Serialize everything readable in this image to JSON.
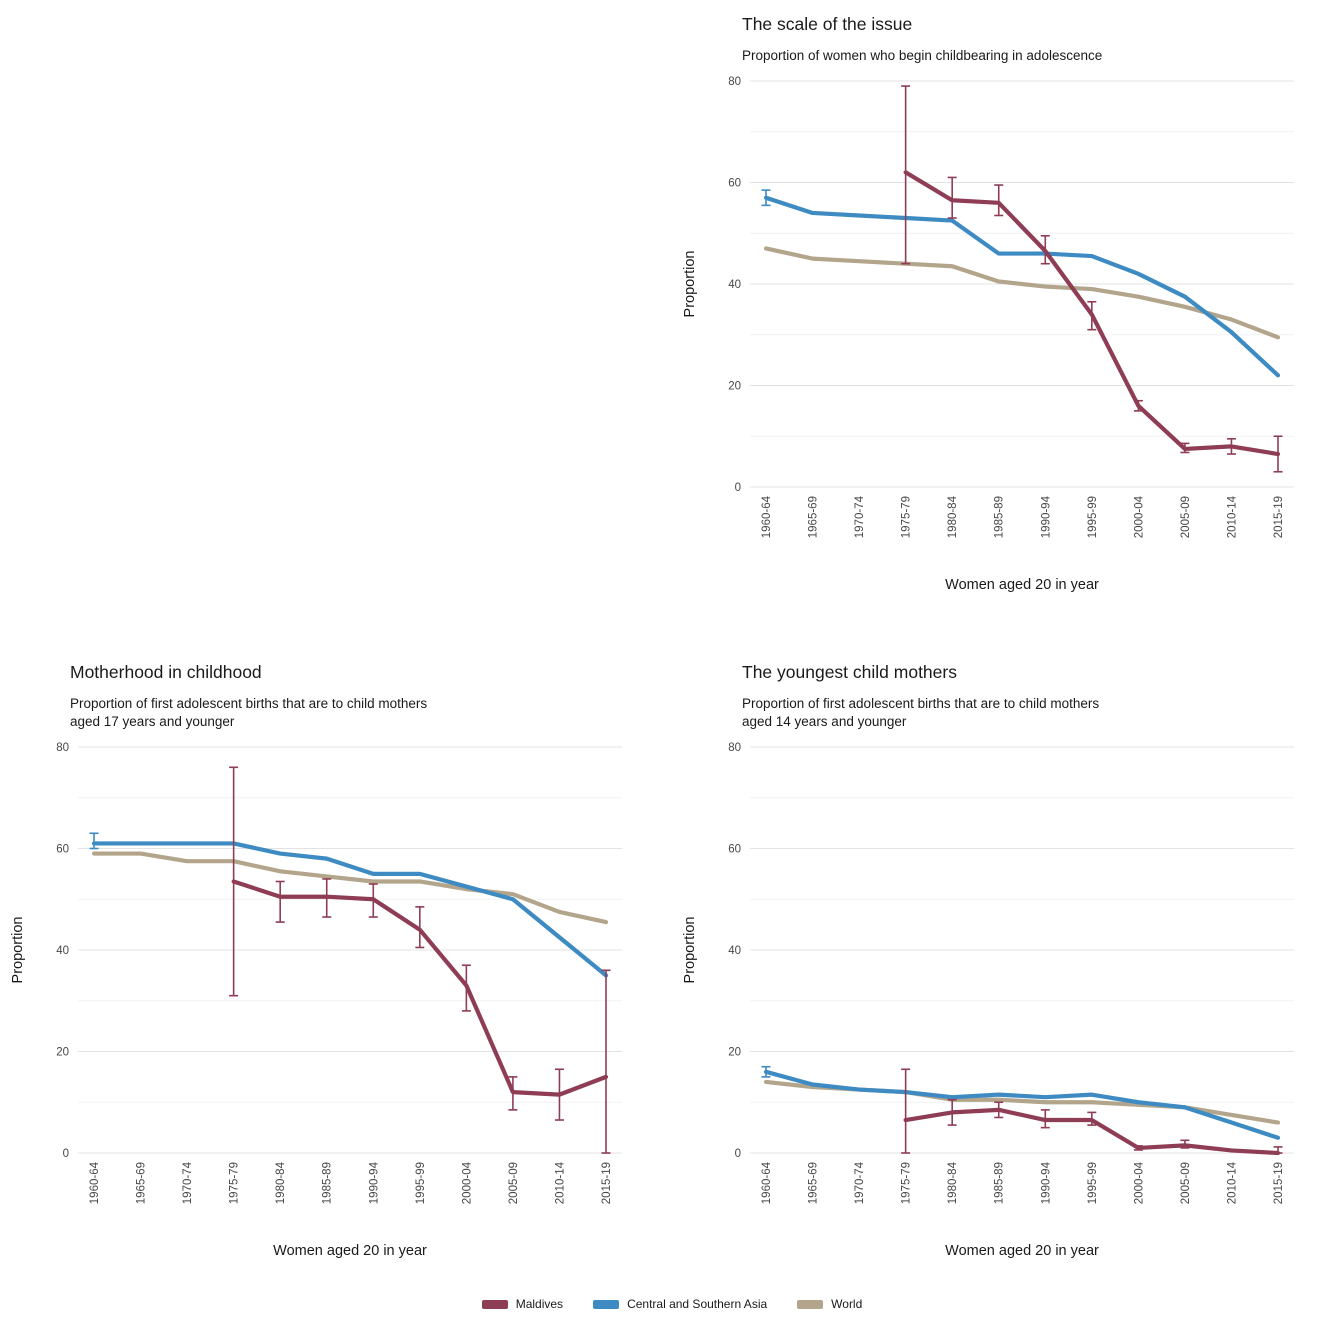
{
  "palette": {
    "Maldives": "#8e3d55",
    "Central and Southern Asia": "#3d8bc2",
    "World": "#b2a58b"
  },
  "legend": {
    "items": [
      "Maldives",
      "Central and Southern Asia",
      "World"
    ]
  },
  "chart_data": [
    {
      "type": "line",
      "title": "The scale of the issue",
      "subtitle": "Proportion of women who begin childbearing in adolescence",
      "xlabel": "Women aged 20 in year",
      "ylabel": "Proportion",
      "ylim": [
        0,
        80
      ],
      "yticks": [
        0,
        20,
        40,
        60,
        80
      ],
      "grid": "horizontal-only",
      "legend_position": "bottom-shared",
      "categories": [
        "1960-64",
        "1965-69",
        "1970-74",
        "1975-79",
        "1980-84",
        "1985-89",
        "1990-94",
        "1995-99",
        "2000-04",
        "2005-09",
        "2010-14",
        "2015-19"
      ],
      "series": [
        {
          "name": "World",
          "values": [
            47,
            45,
            44.5,
            44,
            43.5,
            40.5,
            39.5,
            39,
            37.5,
            35.5,
            33,
            29.5
          ],
          "errors": [
            null,
            null,
            null,
            null,
            null,
            null,
            null,
            null,
            null,
            null,
            null,
            null
          ]
        },
        {
          "name": "Central and Southern Asia",
          "values": [
            57,
            54,
            53.5,
            53,
            52.5,
            46,
            46,
            45.5,
            42,
            37.5,
            30.5,
            22
          ],
          "errors": [
            [
              55.5,
              58.5
            ],
            null,
            null,
            null,
            null,
            null,
            null,
            null,
            null,
            null,
            null,
            null
          ]
        },
        {
          "name": "Maldives",
          "values": [
            null,
            null,
            null,
            62,
            56.5,
            56,
            46.5,
            34,
            16,
            7.5,
            8,
            6.5
          ],
          "errors": [
            null,
            null,
            null,
            [
              44,
              79
            ],
            [
              53,
              61
            ],
            [
              53.5,
              59.5
            ],
            [
              44,
              49.5
            ],
            [
              31,
              36.5
            ],
            [
              15,
              17
            ],
            [
              6.8,
              8.6
            ],
            [
              6.5,
              9.5
            ],
            [
              3,
              10
            ]
          ]
        }
      ]
    },
    {
      "type": "line",
      "title": "Motherhood in childhood",
      "subtitle": "Proportion of first adolescent births that are to child mothers\naged 17 years and younger",
      "xlabel": "Women aged 20 in year",
      "ylabel": "Proportion",
      "ylim": [
        0,
        80
      ],
      "yticks": [
        0,
        20,
        40,
        60,
        80
      ],
      "grid": "horizontal-only",
      "legend_position": "bottom-shared",
      "categories": [
        "1960-64",
        "1965-69",
        "1970-74",
        "1975-79",
        "1980-84",
        "1985-89",
        "1990-94",
        "1995-99",
        "2000-04",
        "2005-09",
        "2010-14",
        "2015-19"
      ],
      "series": [
        {
          "name": "World",
          "values": [
            59,
            59,
            57.5,
            57.5,
            55.5,
            54.5,
            53.5,
            53.5,
            52,
            51,
            47.5,
            45.5
          ],
          "errors": [
            null,
            null,
            null,
            null,
            null,
            null,
            null,
            null,
            null,
            null,
            null,
            null
          ]
        },
        {
          "name": "Central and Southern Asia",
          "values": [
            61,
            61,
            61,
            61,
            59,
            58,
            55,
            55,
            52.5,
            50,
            42.5,
            35
          ],
          "errors": [
            [
              60,
              63
            ],
            null,
            null,
            null,
            null,
            null,
            null,
            null,
            null,
            null,
            null,
            null
          ]
        },
        {
          "name": "Maldives",
          "values": [
            null,
            null,
            null,
            53.5,
            50.5,
            50.5,
            50,
            44,
            33,
            12,
            11.5,
            15
          ],
          "errors": [
            null,
            null,
            null,
            [
              31,
              76
            ],
            [
              45.5,
              53.5
            ],
            [
              46.5,
              54
            ],
            [
              46.5,
              53
            ],
            [
              40.5,
              48.5
            ],
            [
              28,
              37
            ],
            [
              8.5,
              15
            ],
            [
              6.5,
              16.5
            ],
            [
              0,
              36
            ]
          ]
        }
      ]
    },
    {
      "type": "line",
      "title": "The youngest child mothers",
      "subtitle": "Proportion of first adolescent births that are to child mothers\naged 14 years and younger",
      "xlabel": "Women aged 20 in year",
      "ylabel": "Proportion",
      "ylim": [
        0,
        80
      ],
      "yticks": [
        0,
        20,
        40,
        60,
        80
      ],
      "grid": "horizontal-only",
      "legend_position": "bottom-shared",
      "categories": [
        "1960-64",
        "1965-69",
        "1970-74",
        "1975-79",
        "1980-84",
        "1985-89",
        "1990-94",
        "1995-99",
        "2000-04",
        "2005-09",
        "2010-14",
        "2015-19"
      ],
      "series": [
        {
          "name": "World",
          "values": [
            14,
            13,
            12.5,
            12,
            10.5,
            10.5,
            10,
            10,
            9.5,
            9,
            7.5,
            6
          ],
          "errors": [
            null,
            null,
            null,
            null,
            null,
            null,
            null,
            null,
            null,
            null,
            null,
            null
          ]
        },
        {
          "name": "Central and Southern Asia",
          "values": [
            16,
            13.5,
            12.5,
            12,
            11,
            11.5,
            11,
            11.5,
            10,
            9,
            6,
            3
          ],
          "errors": [
            [
              15,
              17
            ],
            null,
            null,
            null,
            null,
            null,
            null,
            null,
            null,
            null,
            null,
            null
          ]
        },
        {
          "name": "Maldives",
          "values": [
            null,
            null,
            null,
            6.5,
            8,
            8.5,
            6.5,
            6.5,
            1,
            1.5,
            0.5,
            0
          ],
          "errors": [
            null,
            null,
            null,
            [
              0,
              16.5
            ],
            [
              5.5,
              10.5
            ],
            [
              7,
              10
            ],
            [
              5,
              8.5
            ],
            [
              5.5,
              8
            ],
            [
              0.6,
              1.4
            ],
            [
              1,
              2.5
            ],
            null,
            [
              0,
              1.2
            ]
          ]
        }
      ]
    }
  ]
}
